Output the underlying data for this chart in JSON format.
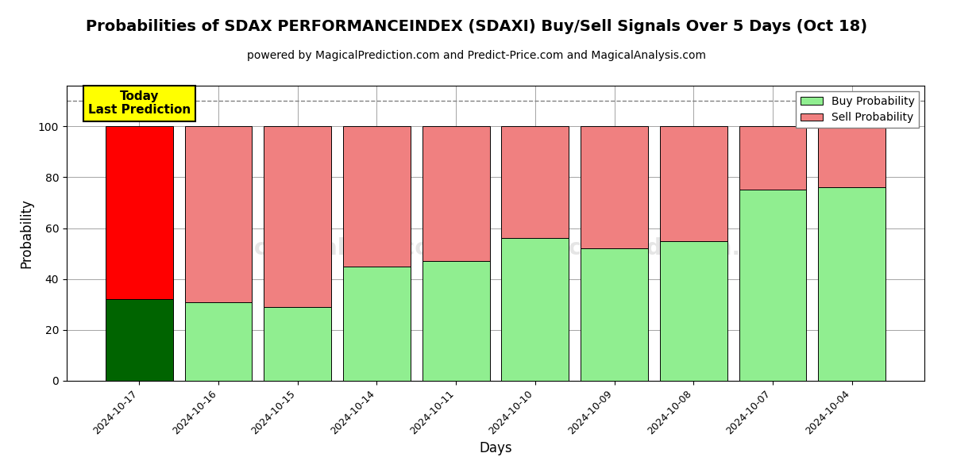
{
  "title": "Probabilities of SDAX PERFORMANCEINDEX (SDAXI) Buy/Sell Signals Over 5 Days (Oct 18)",
  "subtitle": "powered by MagicalPrediction.com and Predict-Price.com and MagicalAnalysis.com",
  "xlabel": "Days",
  "ylabel": "Probability",
  "categories": [
    "2024-10-17",
    "2024-10-16",
    "2024-10-15",
    "2024-10-14",
    "2024-10-11",
    "2024-10-10",
    "2024-10-09",
    "2024-10-08",
    "2024-10-07",
    "2024-10-04"
  ],
  "buy_values": [
    32,
    31,
    29,
    45,
    47,
    56,
    52,
    55,
    75,
    76
  ],
  "sell_values": [
    68,
    69,
    71,
    55,
    53,
    44,
    48,
    45,
    25,
    24
  ],
  "buy_color_first": "#006400",
  "sell_color_first": "#ff0000",
  "buy_color_rest": "#90EE90",
  "sell_color_rest": "#F08080",
  "today_box_color": "#ffff00",
  "today_label": "Today\nLast Prediction",
  "dashed_line_y": 110,
  "ylim": [
    0,
    116
  ],
  "yticks": [
    0,
    20,
    40,
    60,
    80,
    100
  ],
  "legend_buy": "Buy Probability",
  "legend_sell": "Sell Probability",
  "title_fontsize": 14,
  "subtitle_fontsize": 10,
  "axis_label_fontsize": 12
}
